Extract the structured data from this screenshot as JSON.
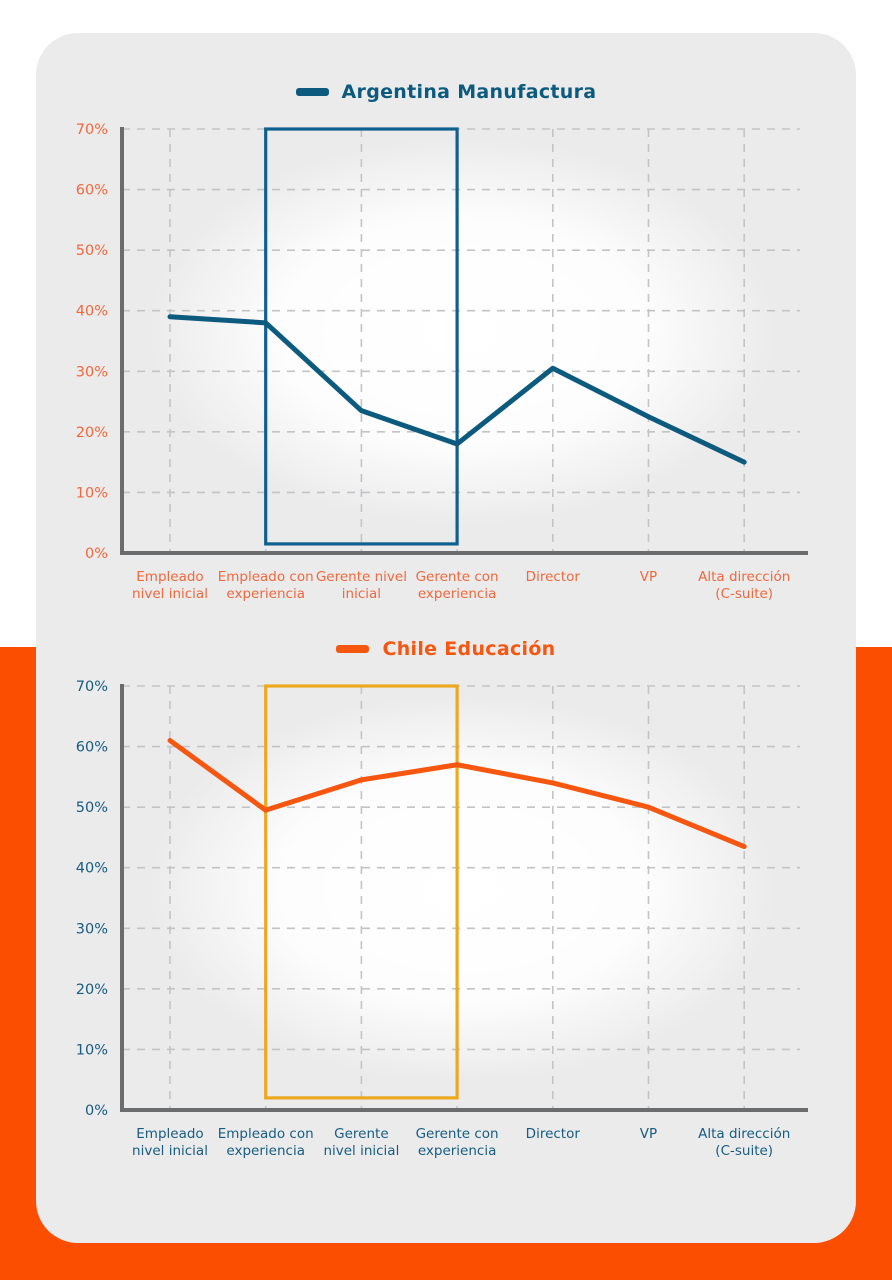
{
  "page": {
    "background_top_color": "#FFFFFF",
    "background_bottom_color": "#FB4E00",
    "card_background_color": "#EBEBEC",
    "axis_color": "#6A6C6E",
    "grid_color": "#C2C4C6"
  },
  "chart_data": [
    {
      "type": "line",
      "title": "Argentina Manufactura",
      "legend_position": "top-center",
      "grid": "dashed",
      "xlabel": "",
      "ylabel": "",
      "ylim": [
        0,
        70
      ],
      "ytick_step": 10,
      "ytick_suffix": "%",
      "ytick_labels": [
        "0%",
        "10%",
        "20%",
        "30%",
        "40%",
        "50%",
        "60%",
        "70%"
      ],
      "categories": [
        "Empleado nivel inicial",
        "Empleado con experiencia",
        "Gerente nivel inicial",
        "Gerente con experiencia",
        "Director",
        "VP",
        "Alta dirección (C-suite)"
      ],
      "category_label_lines": [
        [
          "Empleado",
          "nivel inicial"
        ],
        [
          "Empleado con",
          "experiencia"
        ],
        [
          "Gerente nivel",
          "inicial"
        ],
        [
          "Gerente con",
          "experiencia"
        ],
        [
          "Director"
        ],
        [
          "VP"
        ],
        [
          "Alta dirección",
          "(C-suite)"
        ]
      ],
      "values": [
        39,
        38,
        23.5,
        18,
        30.5,
        22.5,
        15
      ],
      "highlight_box": {
        "from_category": "Empleado con experiencia",
        "to_category": "Gerente con experiencia",
        "y_from": 1.5,
        "y_to": 70,
        "color": "#10608F"
      },
      "colors": {
        "line": "#0D5A7F",
        "title": "#0D5A7F",
        "y_tick_labels": "#F2673B",
        "category_labels": "#F2673B"
      }
    },
    {
      "type": "line",
      "title": "Chile Educación",
      "legend_position": "top-center",
      "grid": "dashed",
      "xlabel": "",
      "ylabel": "",
      "ylim": [
        0,
        70
      ],
      "ytick_step": 10,
      "ytick_suffix": "%",
      "ytick_labels": [
        "0%",
        "10%",
        "20%",
        "30%",
        "40%",
        "50%",
        "60%",
        "70%"
      ],
      "categories": [
        "Empleado nivel inicial",
        "Empleado con experiencia",
        "Gerente nivel inicial",
        "Gerente con experiencia",
        "Director",
        "VP",
        "Alta dirección (C-suite)"
      ],
      "category_label_lines": [
        [
          "Empleado",
          "nivel inicial"
        ],
        [
          "Empleado con",
          "experiencia"
        ],
        [
          "Gerente",
          "nivel inicial"
        ],
        [
          "Gerente con",
          "experiencia"
        ],
        [
          "Director"
        ],
        [
          "VP"
        ],
        [
          "Alta dirección",
          "(C-suite)"
        ]
      ],
      "values": [
        61,
        49.5,
        54.5,
        57,
        54,
        50,
        43.5
      ],
      "highlight_box": {
        "from_category": "Empleado con experiencia",
        "to_category": "Gerente con experiencia",
        "y_from": 2,
        "y_to": 70,
        "color": "#ECA920"
      },
      "colors": {
        "line": "#F65710",
        "title": "#F65710",
        "y_tick_labels": "#175C81",
        "category_labels": "#175C81"
      }
    }
  ]
}
